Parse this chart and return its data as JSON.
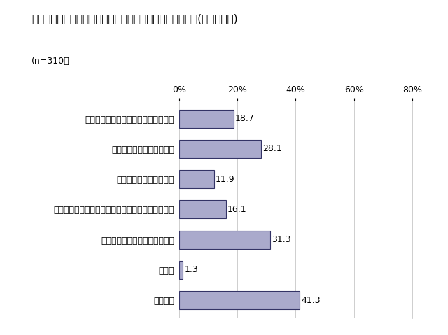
{
  "title": "写真写りを良くする為に努力していることはありますか。(いくつでも)",
  "sample": "(n=310）",
  "categories": [
    "より良い加工アプリやツール等を探す",
    "写真写りの良い角度を研究",
    "ポイントメイクを頑張る",
    "毎日のベースメイクで肌写りを良くするよう頑張る",
    "日頃からのスキンケアを頑張る",
    "その他",
    "特にない"
  ],
  "values": [
    18.7,
    28.1,
    11.9,
    16.1,
    31.3,
    1.3,
    41.3
  ],
  "bar_color": "#aaaacc",
  "bar_edge_color": "#333366",
  "xlim": [
    0,
    80
  ],
  "xticks": [
    0,
    20,
    40,
    60,
    80
  ],
  "xticklabels": [
    "0%",
    "20%",
    "40%",
    "60%",
    "80%"
  ],
  "title_fontsize": 11,
  "label_fontsize": 9,
  "value_fontsize": 9,
  "tick_fontsize": 9,
  "background_color": "#ffffff"
}
